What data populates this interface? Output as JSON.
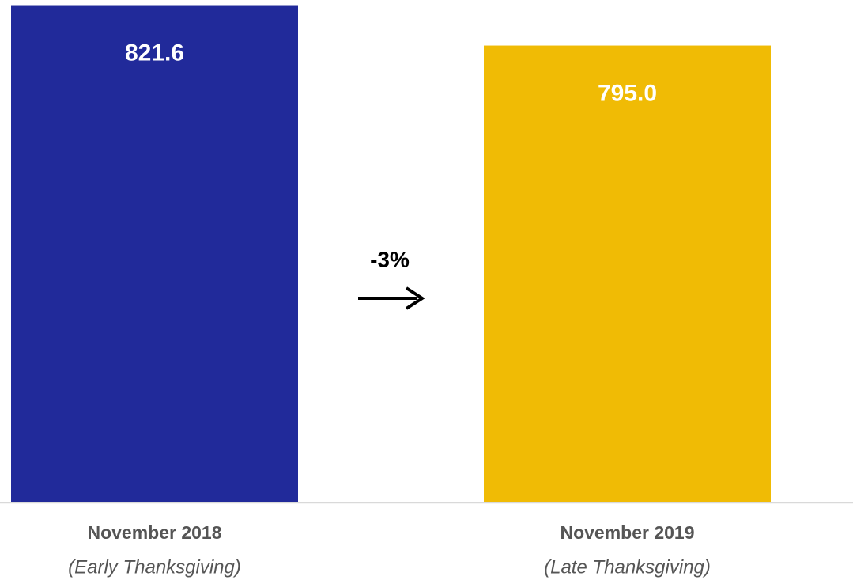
{
  "chart_data": {
    "type": "bar",
    "categories": [
      "November 2018",
      "November 2019"
    ],
    "category_subtitles": [
      "(Early Thanksgiving)",
      "(Late Thanksgiving)"
    ],
    "values": [
      821.6,
      795.0
    ],
    "value_labels": [
      "821.6",
      "795.0"
    ],
    "colors": [
      "#212a9a",
      "#f0bb05"
    ],
    "ylim": [
      494,
      825
    ],
    "annotation": "-3%"
  }
}
